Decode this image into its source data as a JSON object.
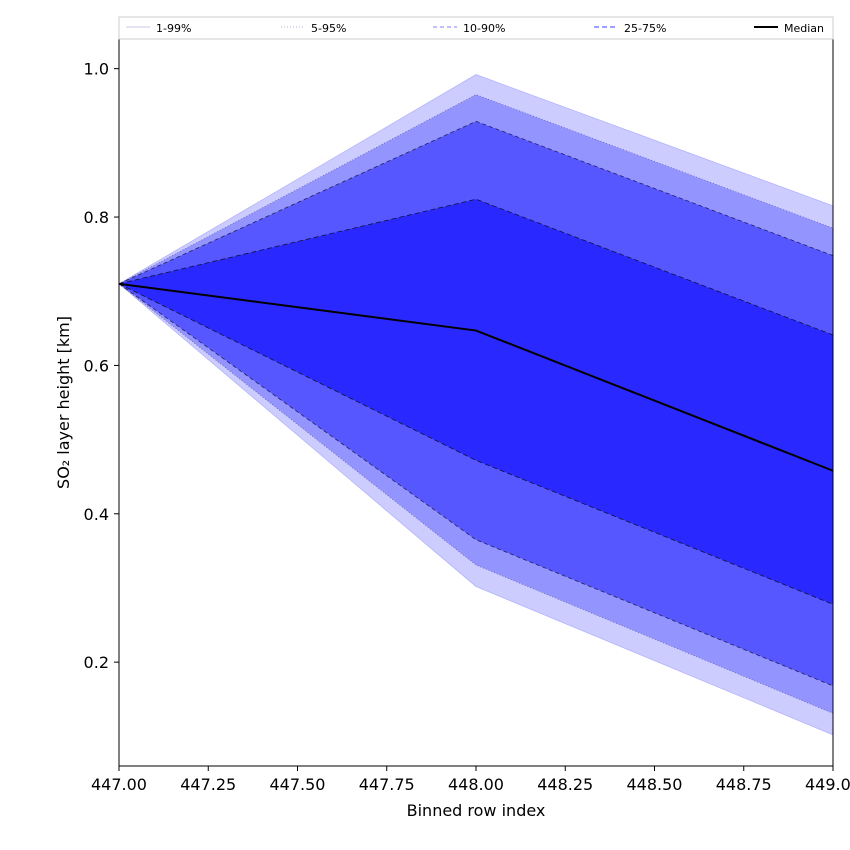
{
  "chart_data": {
    "type": "area",
    "xlabel": "Binned row index",
    "ylabel": "SO₂ layer height [km]",
    "xlim": [
      447.0,
      449.0
    ],
    "ylim": [
      0.06,
      1.04
    ],
    "x_ticks": [
      "447.00",
      "447.25",
      "447.50",
      "447.75",
      "448.00",
      "448.25",
      "448.50",
      "448.75",
      "449.00"
    ],
    "y_ticks": [
      "0.2",
      "0.4",
      "0.6",
      "0.8",
      "1.0"
    ],
    "legend_position": "top",
    "x": [
      447.0,
      448.0,
      449.0
    ],
    "bands": [
      {
        "name": "1-99%",
        "lower": [
          0.71,
          0.302,
          0.102
        ],
        "upper": [
          0.71,
          0.992,
          0.815
        ],
        "fill": "#ccccff",
        "line": "#b3b3ff",
        "dash": "none"
      },
      {
        "name": "5-95%",
        "lower": [
          0.71,
          0.331,
          0.131
        ],
        "upper": [
          0.71,
          0.965,
          0.785
        ],
        "fill": "#9494ff",
        "line": "#6060c0",
        "dash": "1,2"
      },
      {
        "name": "10-90%",
        "lower": [
          0.71,
          0.365,
          0.168
        ],
        "upper": [
          0.71,
          0.929,
          0.748
        ],
        "fill": "#5757ff",
        "line": "#202060",
        "dash": "4,3"
      },
      {
        "name": "25-75%",
        "lower": [
          0.71,
          0.472,
          0.278
        ],
        "upper": [
          0.71,
          0.824,
          0.641
        ],
        "fill": "#2929ff",
        "line": "#101040",
        "dash": "5,3"
      }
    ],
    "median": {
      "name": "Median",
      "values": [
        0.71,
        0.647,
        0.458
      ],
      "color": "#000000"
    },
    "legend": [
      {
        "label": "1-99%",
        "color": "#c8c8e8",
        "dash": "none"
      },
      {
        "label": "5-95%",
        "color": "#b0b0e0",
        "dash": "1,2"
      },
      {
        "label": "10-90%",
        "color": "#8080ff",
        "dash": "4,3"
      },
      {
        "label": "25-75%",
        "color": "#4040ff",
        "dash": "5,3"
      },
      {
        "label": "Median",
        "color": "#000000",
        "dash": "none"
      }
    ]
  }
}
